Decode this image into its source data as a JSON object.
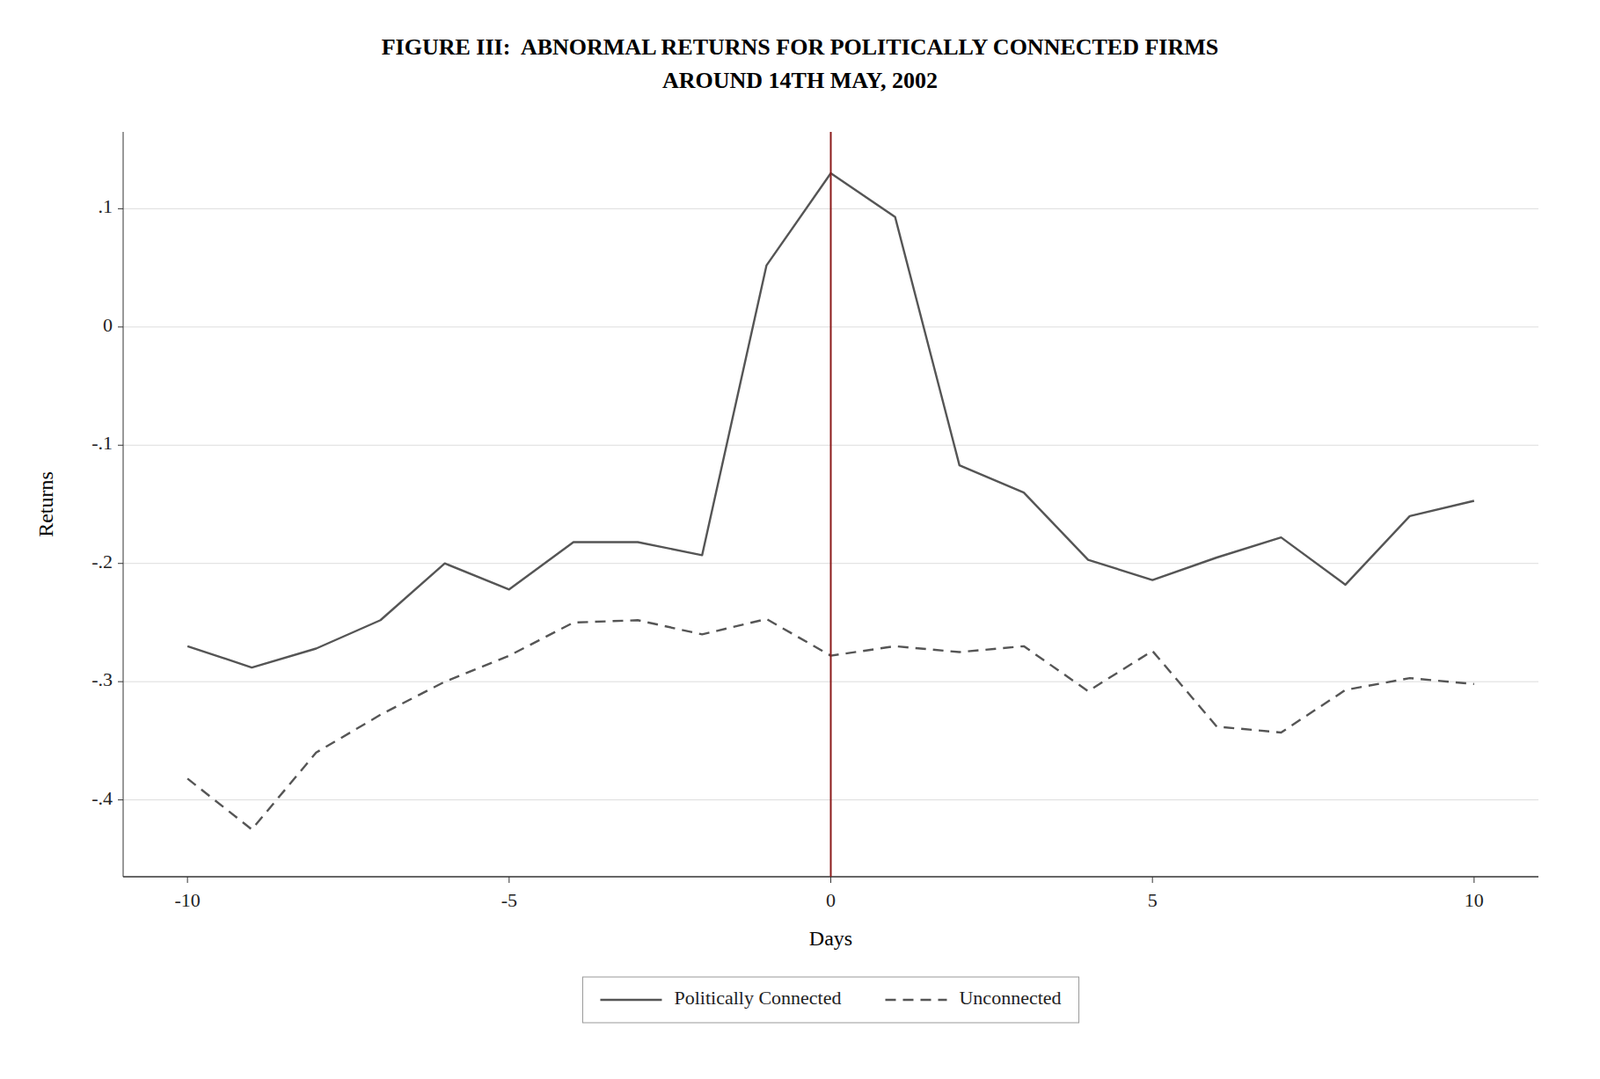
{
  "chart_data": {
    "type": "line",
    "title": "FIGURE III:  ABNORMAL RETURNS FOR POLITICALLY CONNECTED FIRMS",
    "subtitle": "AROUND 14TH MAY, 2002",
    "xlabel": "Days",
    "ylabel": "Returns",
    "x": [
      -10,
      -9,
      -8,
      -7,
      -6,
      -5,
      -4,
      -3,
      -2,
      -1,
      0,
      1,
      2,
      3,
      4,
      5,
      6,
      7,
      8,
      9,
      10
    ],
    "series": [
      {
        "name": "Politically Connected",
        "color": "#555555",
        "line_style": "solid",
        "values": [
          -0.27,
          -0.288,
          -0.272,
          -0.248,
          -0.2,
          -0.222,
          -0.182,
          -0.182,
          -0.193,
          0.052,
          0.13,
          0.093,
          -0.117,
          -0.14,
          -0.197,
          -0.214,
          -0.195,
          -0.178,
          -0.218,
          -0.16,
          -0.147
        ]
      },
      {
        "name": "Unconnected",
        "color": "#555555",
        "line_style": "dashed",
        "values": [
          -0.382,
          -0.425,
          -0.36,
          -0.328,
          -0.3,
          -0.278,
          -0.25,
          -0.248,
          -0.26,
          -0.247,
          -0.278,
          -0.27,
          -0.275,
          -0.27,
          -0.308,
          -0.274,
          -0.338,
          -0.343,
          -0.307,
          -0.297,
          -0.302
        ]
      }
    ],
    "reference_line": {
      "x": 0,
      "color": "#8b1a1a"
    },
    "xlim": [
      -11,
      11
    ],
    "ylim": [
      -0.465,
      0.165
    ],
    "xticks": [
      -10,
      -5,
      0,
      5,
      10
    ],
    "yticks": [
      {
        "value": -0.4,
        "label": "-.4"
      },
      {
        "value": -0.3,
        "label": "-.3"
      },
      {
        "value": -0.2,
        "label": "-.2"
      },
      {
        "value": -0.1,
        "label": "-.1"
      },
      0,
      {
        "value": 0.1,
        "label": ".1"
      }
    ],
    "grid": true,
    "legend": "bottom"
  }
}
